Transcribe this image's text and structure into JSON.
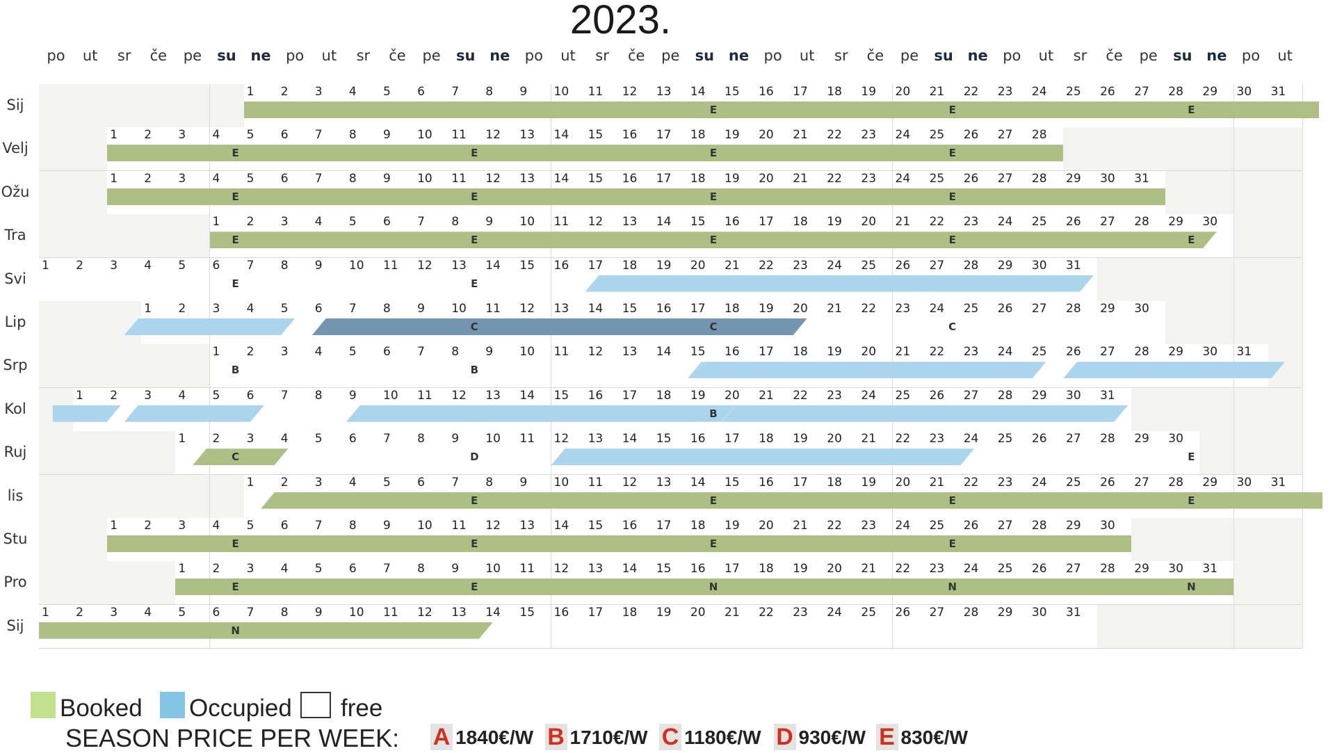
{
  "title": "2023.",
  "weekdays": [
    "po",
    "ut",
    "sr",
    "če",
    "pe",
    "su",
    "ne",
    "po",
    "ut",
    "sr",
    "če",
    "pe",
    "su",
    "ne",
    "po",
    "ut",
    "sr",
    "če",
    "pe",
    "su",
    "ne",
    "po",
    "ut",
    "sr",
    "če",
    "pe",
    "su",
    "ne",
    "po",
    "ut",
    "sr",
    "če",
    "pe",
    "su",
    "ne",
    "po",
    "ut"
  ],
  "months": [
    {
      "label": "Sij",
      "offset": 6,
      "days": 31,
      "bars": [
        {
          "type": "booked",
          "start": 1,
          "end": 31.5,
          "shape": "flat"
        }
      ],
      "codes": [
        {
          "day": 14,
          "code": "E"
        },
        {
          "day": 21,
          "code": "E"
        },
        {
          "day": 28,
          "code": "E"
        }
      ]
    },
    {
      "label": "Velj",
      "offset": 2,
      "days": 28,
      "bars": [
        {
          "type": "booked",
          "start": 1,
          "end": 28,
          "shape": "flat"
        }
      ],
      "codes": [
        {
          "day": 4,
          "code": "E"
        },
        {
          "day": 11,
          "code": "E"
        },
        {
          "day": 18,
          "code": "E"
        },
        {
          "day": 25,
          "code": "E"
        }
      ]
    },
    {
      "label": "Ožu",
      "offset": 2,
      "days": 31,
      "bars": [
        {
          "type": "booked",
          "start": 1,
          "end": 31,
          "shape": "flat"
        }
      ],
      "codes": [
        {
          "day": 4,
          "code": "E"
        },
        {
          "day": 11,
          "code": "E"
        },
        {
          "day": 18,
          "code": "E"
        },
        {
          "day": 25,
          "code": "E"
        }
      ]
    },
    {
      "label": "Tra",
      "offset": 5,
      "days": 30,
      "bars": [
        {
          "type": "booked",
          "start": 1,
          "end": 29.5,
          "shape": "slant-r"
        }
      ],
      "codes": [
        {
          "day": 1,
          "code": "E"
        },
        {
          "day": 8,
          "code": "E"
        },
        {
          "day": 15,
          "code": "E"
        },
        {
          "day": 22,
          "code": "E"
        },
        {
          "day": 29,
          "code": "E"
        }
      ]
    },
    {
      "label": "Svi",
      "offset": 0,
      "days": 31,
      "bars": [
        {
          "type": "occupied",
          "start": 17,
          "end": 26.5,
          "shape": "slant"
        },
        {
          "type": "occupied",
          "start": 27,
          "end": 30.9,
          "shape": "slant"
        }
      ],
      "codes": [
        {
          "day": 6,
          "code": "E"
        },
        {
          "day": 13,
          "code": "E"
        }
      ]
    },
    {
      "label": "Lip",
      "offset": 3,
      "days": 30,
      "bars": [
        {
          "type": "occupied",
          "start": 0.5,
          "end": 4.5,
          "shape": "slant"
        },
        {
          "type": "occupied-dark",
          "start": 6,
          "end": 19.5,
          "shape": "slant"
        }
      ],
      "codes": [
        {
          "day": 10,
          "code": "C"
        },
        {
          "day": 17,
          "code": "C"
        },
        {
          "day": 24,
          "code": "C"
        }
      ]
    },
    {
      "label": "Srp",
      "offset": 5,
      "days": 31,
      "bars": [
        {
          "type": "occupied",
          "start": 15,
          "end": 24.5,
          "shape": "slant"
        },
        {
          "type": "occupied",
          "start": 26,
          "end": 31.5,
          "shape": "slant"
        }
      ],
      "codes": [
        {
          "day": 1,
          "code": "B"
        },
        {
          "day": 8,
          "code": "B"
        }
      ]
    },
    {
      "label": "Kol",
      "offset": 1,
      "days": 31,
      "bars": [
        {
          "type": "occupied",
          "start": 0.4,
          "end": 1.4,
          "shape": "slant-r"
        },
        {
          "type": "occupied",
          "start": 2.5,
          "end": 5.6,
          "shape": "slant"
        },
        {
          "type": "occupied",
          "start": 9,
          "end": 12.5,
          "shape": "slant"
        },
        {
          "type": "occupied",
          "start": 12.5,
          "end": 19.4,
          "shape": "slant"
        },
        {
          "type": "occupied",
          "start": 20,
          "end": 30.9,
          "shape": "slant"
        }
      ],
      "codes": [
        {
          "day": 19,
          "code": "B"
        }
      ]
    },
    {
      "label": "Ruj",
      "offset": 4,
      "days": 30,
      "bars": [
        {
          "type": "booked",
          "start": 1.5,
          "end": 3.3,
          "shape": "slant"
        },
        {
          "type": "occupied",
          "start": 12,
          "end": 23.4,
          "shape": "slant"
        }
      ],
      "codes": [
        {
          "day": 2,
          "code": "C"
        },
        {
          "day": 9,
          "code": "D"
        },
        {
          "day": 30,
          "code": "E"
        }
      ]
    },
    {
      "label": "lis",
      "offset": 6,
      "days": 31,
      "bars": [
        {
          "type": "booked",
          "start": 1.5,
          "end": 31.6,
          "shape": "slant-l"
        }
      ],
      "codes": [
        {
          "day": 7,
          "code": "E"
        },
        {
          "day": 14,
          "code": "E"
        },
        {
          "day": 21,
          "code": "E"
        },
        {
          "day": 28,
          "code": "E"
        }
      ]
    },
    {
      "label": "Stu",
      "offset": 2,
      "days": 30,
      "bars": [
        {
          "type": "booked",
          "start": 1,
          "end": 30,
          "shape": "flat"
        }
      ],
      "codes": [
        {
          "day": 4,
          "code": "E"
        },
        {
          "day": 11,
          "code": "E"
        },
        {
          "day": 18,
          "code": "E"
        },
        {
          "day": 25,
          "code": "E"
        }
      ]
    },
    {
      "label": "Pro",
      "offset": 4,
      "days": 31,
      "bars": [
        {
          "type": "booked",
          "start": 1,
          "end": 31,
          "shape": "flat"
        }
      ],
      "codes": [
        {
          "day": 2,
          "code": "E"
        },
        {
          "day": 9,
          "code": "E"
        },
        {
          "day": 16,
          "code": "N"
        },
        {
          "day": 23,
          "code": "N"
        },
        {
          "day": 30,
          "code": "N"
        }
      ]
    },
    {
      "label": "Sij",
      "offset": 0,
      "days": 31,
      "bars": [
        {
          "type": "booked",
          "start": 1,
          "end": 13.3,
          "shape": "slant-r"
        }
      ],
      "codes": [
        {
          "day": 6,
          "code": "N"
        }
      ]
    }
  ],
  "legend": {
    "booked_label": "Booked",
    "occupied_label": "Occupied",
    "free_label": "free",
    "colors": {
      "booked": "#c1e28c",
      "occupied": "#84c4e5",
      "free": "#ffffff"
    }
  },
  "prices": {
    "label": "SEASON PRICE PER WEEK:",
    "items": [
      {
        "letter": "A",
        "value": "1840€/W"
      },
      {
        "letter": "B",
        "value": "1710€/W"
      },
      {
        "letter": "C",
        "value": "1180€/W"
      },
      {
        "letter": "D",
        "value": "930€/W"
      },
      {
        "letter": "E",
        "value": "830€/W"
      }
    ]
  }
}
